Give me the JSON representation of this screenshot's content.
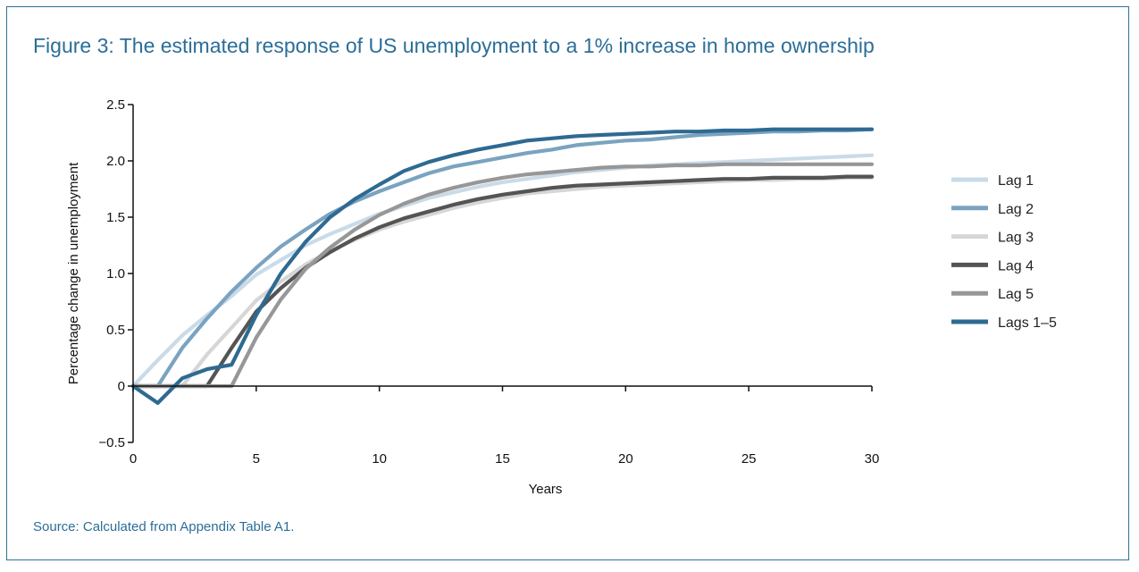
{
  "figure": {
    "title": "Figure 3: The estimated response of US unemployment to a 1% increase in home ownership",
    "source": "Source: Calculated from Appendix Table A1."
  },
  "chart_data": {
    "type": "line",
    "title": "Figure 3: The estimated response of US unemployment to a 1% increase in home ownership",
    "xlabel": "Years",
    "ylabel": "Percentage change in unemployment",
    "xlim": [
      0,
      30
    ],
    "ylim": [
      -0.5,
      2.5
    ],
    "xticks": [
      0,
      5,
      10,
      15,
      20,
      25,
      30
    ],
    "yticks": [
      -0.5,
      0,
      0.5,
      1.0,
      1.5,
      2.0,
      2.5
    ],
    "ytick_labels": [
      "−0.5",
      "0",
      "0.5",
      "1.0",
      "1.5",
      "2.0",
      "2.5"
    ],
    "grid": false,
    "legend_position": "right",
    "x": [
      0,
      1,
      2,
      3,
      4,
      5,
      6,
      7,
      8,
      9,
      10,
      11,
      12,
      13,
      14,
      15,
      16,
      17,
      18,
      19,
      20,
      21,
      22,
      23,
      24,
      25,
      26,
      27,
      28,
      29,
      30
    ],
    "series": [
      {
        "name": "Lag 1",
        "color": "#c9dbe8",
        "values": [
          0,
          0.23,
          0.45,
          0.63,
          0.8,
          0.99,
          1.12,
          1.25,
          1.35,
          1.44,
          1.53,
          1.6,
          1.67,
          1.72,
          1.77,
          1.81,
          1.84,
          1.87,
          1.9,
          1.92,
          1.94,
          1.96,
          1.97,
          1.98,
          1.99,
          2.0,
          2.01,
          2.02,
          2.03,
          2.04,
          2.05
        ]
      },
      {
        "name": "Lag 2",
        "color": "#7aa3c1",
        "values": [
          0,
          0,
          0.34,
          0.6,
          0.84,
          1.05,
          1.24,
          1.39,
          1.53,
          1.64,
          1.73,
          1.81,
          1.89,
          1.95,
          1.99,
          2.03,
          2.07,
          2.1,
          2.14,
          2.16,
          2.18,
          2.19,
          2.21,
          2.23,
          2.24,
          2.25,
          2.26,
          2.26,
          2.27,
          2.27,
          2.28
        ]
      },
      {
        "name": "Lag 3",
        "color": "#d6d6d6",
        "values": [
          0,
          0,
          0,
          0.28,
          0.52,
          0.76,
          0.93,
          1.08,
          1.2,
          1.3,
          1.39,
          1.46,
          1.52,
          1.58,
          1.63,
          1.67,
          1.71,
          1.73,
          1.75,
          1.77,
          1.78,
          1.79,
          1.8,
          1.81,
          1.82,
          1.83,
          1.83,
          1.84,
          1.84,
          1.85,
          1.85
        ]
      },
      {
        "name": "Lag 4",
        "color": "#545454",
        "values": [
          0,
          0,
          0,
          0,
          0.34,
          0.66,
          0.87,
          1.05,
          1.19,
          1.31,
          1.41,
          1.49,
          1.55,
          1.61,
          1.66,
          1.7,
          1.73,
          1.76,
          1.78,
          1.79,
          1.8,
          1.81,
          1.82,
          1.83,
          1.84,
          1.84,
          1.85,
          1.85,
          1.85,
          1.86,
          1.86
        ]
      },
      {
        "name": "Lag 5",
        "color": "#979797",
        "values": [
          0,
          0,
          0,
          0,
          0,
          0.43,
          0.77,
          1.04,
          1.23,
          1.39,
          1.52,
          1.62,
          1.7,
          1.76,
          1.81,
          1.85,
          1.88,
          1.9,
          1.92,
          1.94,
          1.95,
          1.95,
          1.96,
          1.96,
          1.97,
          1.97,
          1.97,
          1.97,
          1.97,
          1.97,
          1.97
        ]
      },
      {
        "name": "Lags 1–5",
        "color": "#2e6a92",
        "values": [
          0,
          -0.15,
          0.07,
          0.15,
          0.19,
          0.63,
          1.0,
          1.28,
          1.5,
          1.66,
          1.79,
          1.91,
          1.99,
          2.05,
          2.1,
          2.14,
          2.18,
          2.2,
          2.22,
          2.23,
          2.24,
          2.25,
          2.26,
          2.26,
          2.27,
          2.27,
          2.28,
          2.28,
          2.28,
          2.28,
          2.28
        ]
      }
    ]
  }
}
